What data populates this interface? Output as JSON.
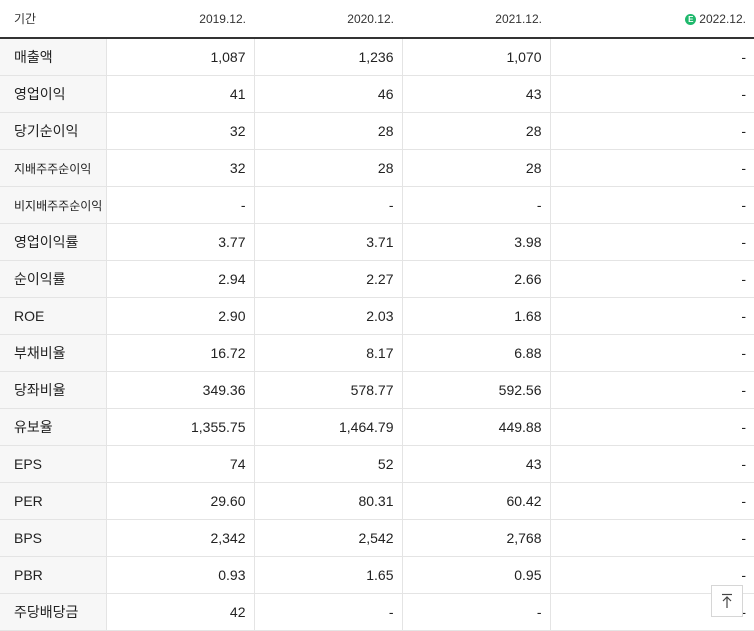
{
  "header": {
    "period_label": "기간",
    "columns": [
      "2019.12.",
      "2020.12.",
      "2021.12.",
      "2022.12."
    ],
    "estimate_badge": "E"
  },
  "rows": [
    {
      "label": "매출액",
      "values": [
        "1,087",
        "1,236",
        "1,070",
        "-"
      ]
    },
    {
      "label": "영업이익",
      "values": [
        "41",
        "46",
        "43",
        "-"
      ]
    },
    {
      "label": "당기순이익",
      "values": [
        "32",
        "28",
        "28",
        "-"
      ]
    },
    {
      "label": "지배주주순이익",
      "values": [
        "32",
        "28",
        "28",
        "-"
      ]
    },
    {
      "label": "비지배주주순이익",
      "values": [
        "-",
        "-",
        "-",
        "-"
      ]
    },
    {
      "label": "영업이익률",
      "values": [
        "3.77",
        "3.71",
        "3.98",
        "-"
      ]
    },
    {
      "label": "순이익률",
      "values": [
        "2.94",
        "2.27",
        "2.66",
        "-"
      ]
    },
    {
      "label": "ROE",
      "values": [
        "2.90",
        "2.03",
        "1.68",
        "-"
      ]
    },
    {
      "label": "부채비율",
      "values": [
        "16.72",
        "8.17",
        "6.88",
        "-"
      ]
    },
    {
      "label": "당좌비율",
      "values": [
        "349.36",
        "578.77",
        "592.56",
        "-"
      ]
    },
    {
      "label": "유보율",
      "values": [
        "1,355.75",
        "1,464.79",
        "449.88",
        "-"
      ]
    },
    {
      "label": "EPS",
      "values": [
        "74",
        "52",
        "43",
        "-"
      ]
    },
    {
      "label": "PER",
      "values": [
        "29.60",
        "80.31",
        "60.42",
        "-"
      ]
    },
    {
      "label": "BPS",
      "values": [
        "2,342",
        "2,542",
        "2,768",
        "-"
      ]
    },
    {
      "label": "PBR",
      "values": [
        "0.93",
        "1.65",
        "0.95",
        "-"
      ]
    },
    {
      "label": "주당배당금",
      "values": [
        "42",
        "-",
        "-",
        "-"
      ]
    }
  ],
  "scroll_top_icon": "arrow-up-to-top-icon"
}
